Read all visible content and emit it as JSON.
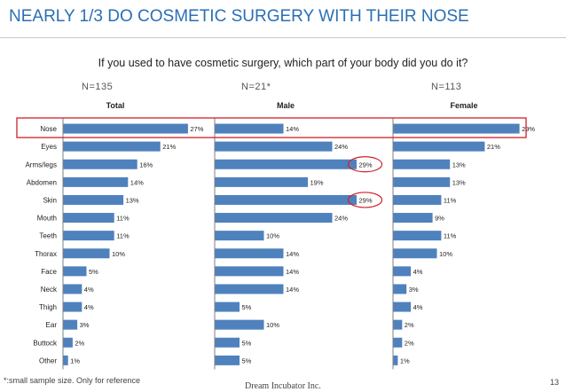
{
  "title": "NEARLY 1/3 DO COSMETIC SURGERY WITH THEIR NOSE",
  "question": "If you used to have cosmetic surgery, which part of your body did you do it?",
  "footnote": "*:small sample size.  Only for reference",
  "footer": "Dream Incubator Inc.",
  "page_number": "13",
  "highlight": {
    "row_box_color": "#d0202a",
    "circle_color": "#d0202a",
    "highlighted_category": "Nose",
    "circled_male_categories": [
      "Arms/legs",
      "Skin"
    ]
  },
  "colors": {
    "bar": "#4f81bd",
    "axis": "#7f7f7f",
    "title": "#2a6fb5"
  },
  "chart_data": {
    "type": "bar",
    "orientation": "horizontal",
    "categories": [
      "Nose",
      "Eyes",
      "Arms/legs",
      "Abdomen",
      "Skin",
      "Mouth",
      "Teeth",
      "Thorax",
      "Face",
      "Neck",
      "Thigh",
      "Ear",
      "Buttock",
      "Other"
    ],
    "value_unit": "%",
    "xlim": [
      0,
      30
    ],
    "series": [
      {
        "name": "Total",
        "sample": "N=135",
        "values": [
          27,
          21,
          16,
          14,
          13,
          11,
          11,
          10,
          5,
          4,
          4,
          3,
          2,
          1
        ]
      },
      {
        "name": "Male",
        "sample": "N=21*",
        "values": [
          14,
          24,
          29,
          19,
          29,
          24,
          10,
          14,
          14,
          14,
          5,
          10,
          5,
          5
        ]
      },
      {
        "name": "Female",
        "sample": "N=113",
        "values": [
          29,
          21,
          13,
          13,
          11,
          9,
          11,
          10,
          4,
          3,
          4,
          2,
          2,
          1
        ]
      }
    ]
  }
}
